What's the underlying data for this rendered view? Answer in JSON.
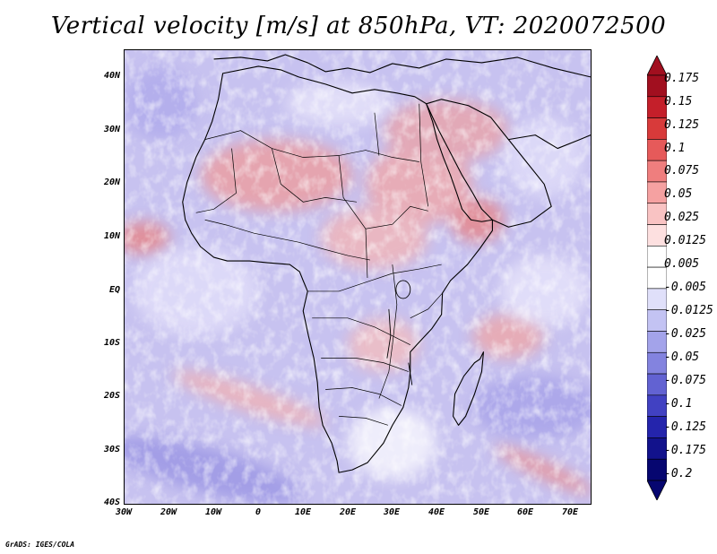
{
  "title": "Vertical velocity [m/s] at 850hPa, VT: 2020072500",
  "footer": "GrADS: IGES/COLA",
  "map": {
    "lat_ticks": [
      "40N",
      "30N",
      "20N",
      "10N",
      "EQ",
      "10S",
      "20S",
      "30S",
      "40S"
    ],
    "lon_ticks": [
      "30W",
      "20W",
      "10W",
      "0",
      "10E",
      "20E",
      "30E",
      "40E",
      "50E",
      "60E",
      "70E"
    ],
    "lon_range": [
      -30,
      75
    ],
    "lat_range": [
      -40,
      44
    ],
    "field": "vertical velocity",
    "level": "850hPa",
    "valid_time": "2020072500"
  },
  "colorbar": {
    "labels": [
      "0.175",
      "0.15",
      "0.125",
      "0.1",
      "0.075",
      "0.05",
      "0.025",
      "0.0125",
      "0.005",
      "-0.005",
      "-0.0125",
      "-0.025",
      "-0.05",
      "-0.075",
      "-0.1",
      "-0.125",
      "-0.175",
      "-0.2"
    ],
    "colors": [
      "#a10f1f",
      "#c41f2a",
      "#d83a3a",
      "#e65a5a",
      "#ef7e7e",
      "#f5a1a1",
      "#f9c3c3",
      "#fde0e0",
      "#ffffff",
      "#ffffff",
      "#e0e0fa",
      "#c3c3f3",
      "#a3a3ea",
      "#8383df",
      "#6262d2",
      "#4141c2",
      "#2424ac",
      "#12128c",
      "#060670"
    ],
    "top_arrow_color": "#a10f1f",
    "bottom_arrow_color": "#060670"
  }
}
